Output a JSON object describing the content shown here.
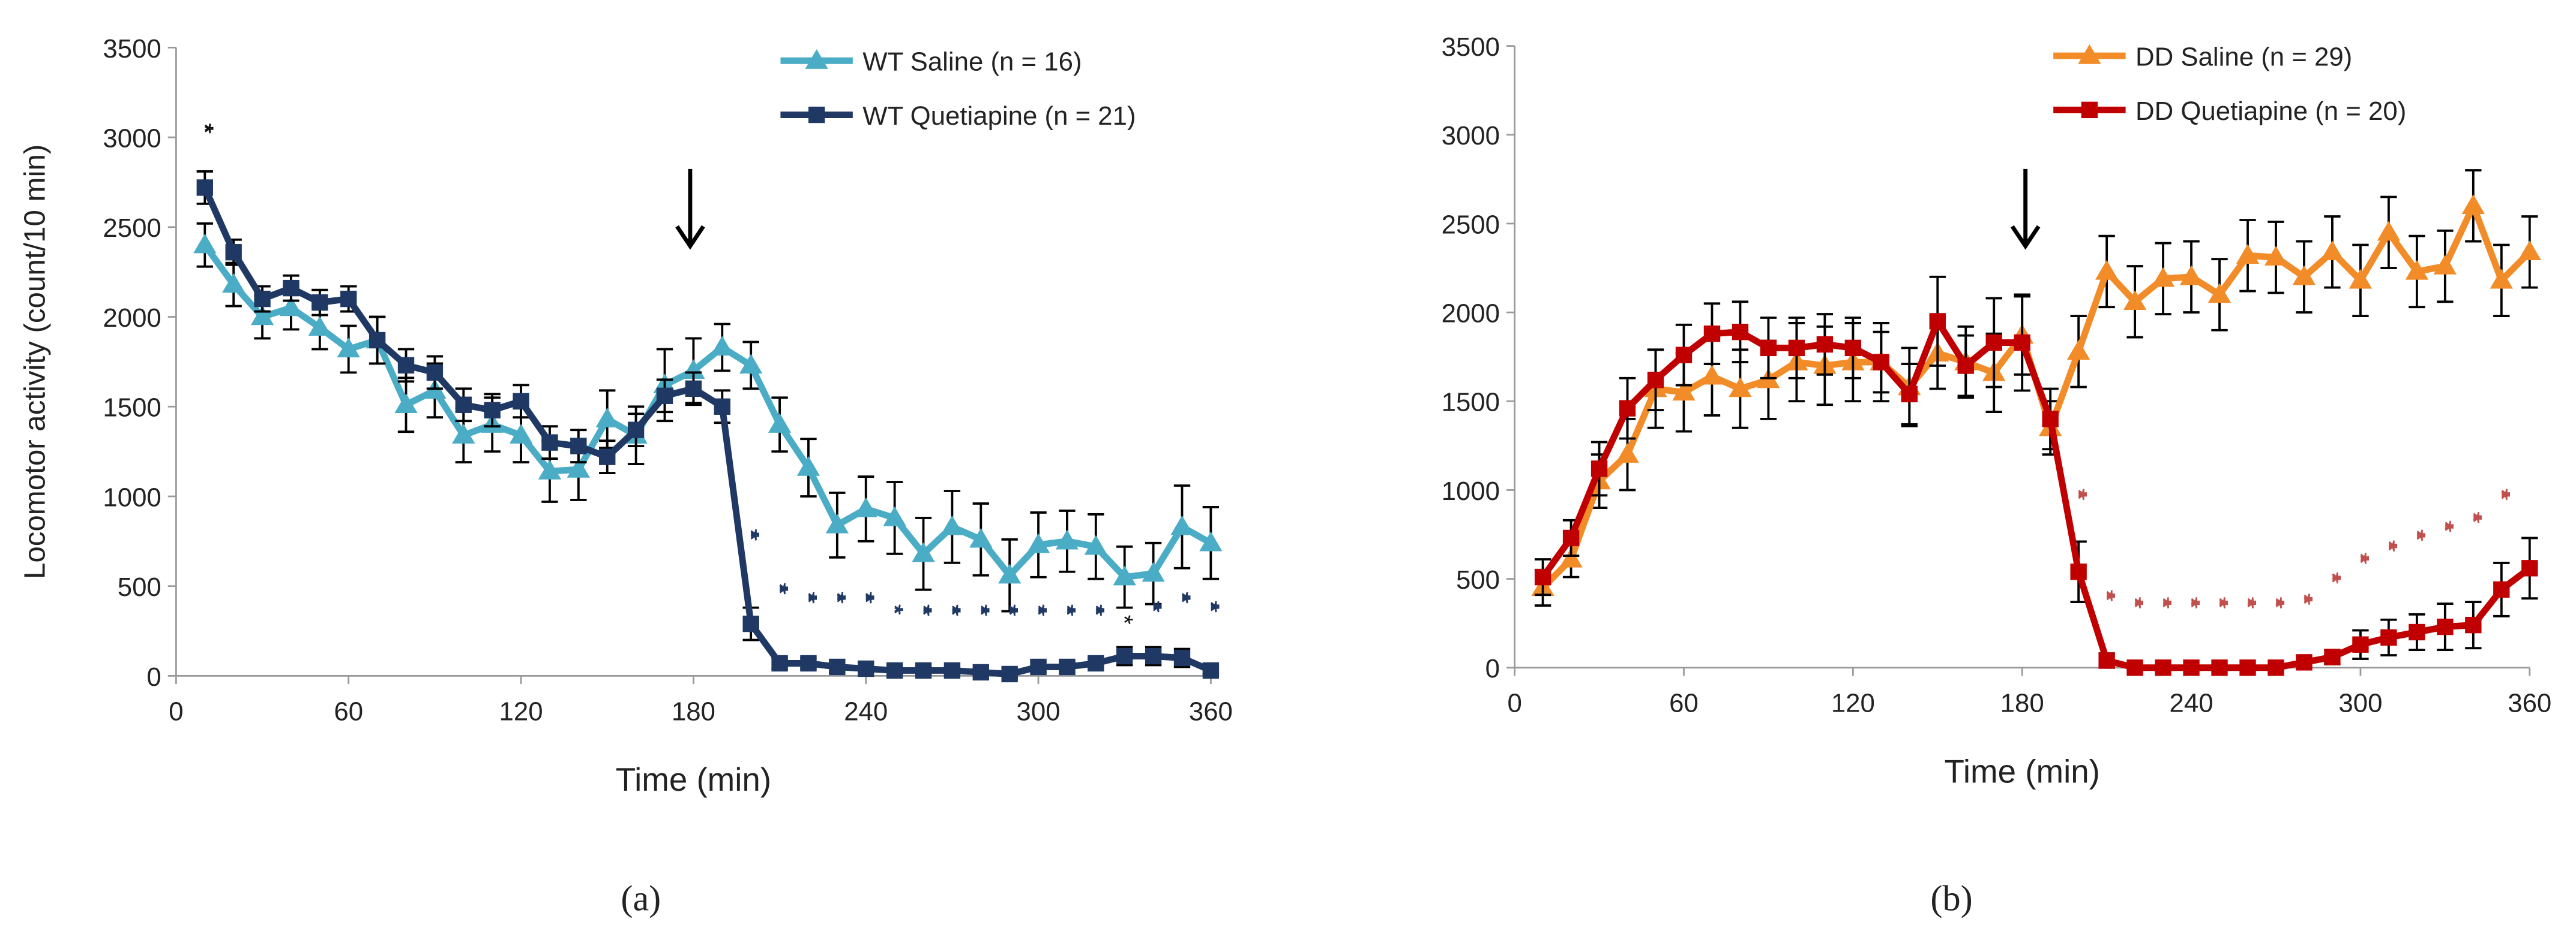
{
  "chart_data": [
    {
      "type": "line",
      "caption": "(a)",
      "xlabel": "Time (min)",
      "ylabel": "Locomotor activity (count/10 min)",
      "x": [
        10,
        20,
        30,
        40,
        50,
        60,
        70,
        80,
        90,
        100,
        110,
        120,
        130,
        140,
        150,
        160,
        170,
        180,
        190,
        200,
        210,
        220,
        230,
        240,
        250,
        260,
        270,
        280,
        290,
        300,
        310,
        320,
        330,
        340,
        350,
        360
      ],
      "xlim": [
        0,
        360
      ],
      "xticks": [
        0,
        60,
        120,
        180,
        240,
        300,
        360
      ],
      "ylim": [
        0,
        3500
      ],
      "yticks": [
        0,
        500,
        1000,
        1500,
        2000,
        2500,
        3000,
        3500
      ],
      "series": [
        {
          "name": "WT Saline (n = 16)",
          "color": "#4bacc6",
          "marker": "triangle",
          "values": [
            2400,
            2180,
            2000,
            2050,
            1940,
            1820,
            1870,
            1510,
            1590,
            1340,
            1400,
            1340,
            1140,
            1150,
            1430,
            1340,
            1620,
            1700,
            1830,
            1730,
            1400,
            1160,
            840,
            930,
            880,
            680,
            830,
            760,
            560,
            730,
            750,
            720,
            550,
            570,
            830,
            740
          ],
          "errors": [
            120,
            120,
            120,
            120,
            120,
            130,
            130,
            150,
            150,
            150,
            150,
            150,
            170,
            170,
            160,
            160,
            200,
            180,
            130,
            130,
            150,
            160,
            180,
            180,
            200,
            200,
            200,
            200,
            200,
            180,
            170,
            180,
            170,
            170,
            230,
            200
          ]
        },
        {
          "name": "WT Quetiapine (n = 21)",
          "color": "#1f3864",
          "marker": "square",
          "values": [
            2720,
            2360,
            2100,
            2160,
            2080,
            2100,
            1870,
            1730,
            1690,
            1510,
            1480,
            1530,
            1300,
            1280,
            1220,
            1370,
            1560,
            1600,
            1500,
            290,
            70,
            70,
            50,
            40,
            30,
            30,
            30,
            20,
            10,
            50,
            50,
            70,
            110,
            110,
            100,
            30
          ],
          "errors": [
            90,
            70,
            70,
            70,
            70,
            70,
            130,
            90,
            90,
            90,
            90,
            90,
            90,
            90,
            90,
            90,
            90,
            90,
            90,
            90,
            30,
            30,
            30,
            30,
            20,
            20,
            20,
            20,
            20,
            30,
            30,
            30,
            50,
            50,
            50,
            20
          ]
        }
      ],
      "annotations": [
        {
          "x": 10,
          "y": 3080,
          "text": "**",
          "color": "#111111"
        },
        {
          "x": 200,
          "y": 820,
          "text": "***",
          "color": "#1f3864"
        },
        {
          "x": 210,
          "y": 520,
          "text": "***",
          "color": "#1f3864"
        },
        {
          "x": 220,
          "y": 470,
          "text": "***",
          "color": "#1f3864"
        },
        {
          "x": 230,
          "y": 470,
          "text": "***",
          "color": "#1f3864"
        },
        {
          "x": 240,
          "y": 470,
          "text": "***",
          "color": "#1f3864"
        },
        {
          "x": 250,
          "y": 400,
          "text": "**",
          "color": "#1f3864"
        },
        {
          "x": 260,
          "y": 400,
          "text": "***",
          "color": "#1f3864"
        },
        {
          "x": 270,
          "y": 400,
          "text": "***",
          "color": "#1f3864"
        },
        {
          "x": 280,
          "y": 400,
          "text": "***",
          "color": "#1f3864"
        },
        {
          "x": 290,
          "y": 400,
          "text": "***",
          "color": "#1f3864"
        },
        {
          "x": 300,
          "y": 400,
          "text": "***",
          "color": "#1f3864"
        },
        {
          "x": 310,
          "y": 400,
          "text": "***",
          "color": "#1f3864"
        },
        {
          "x": 320,
          "y": 400,
          "text": "***",
          "color": "#1f3864"
        },
        {
          "x": 330,
          "y": 340,
          "text": "*",
          "color": "#111111"
        },
        {
          "x": 340,
          "y": 420,
          "text": "***",
          "color": "#1f3864"
        },
        {
          "x": 350,
          "y": 470,
          "text": "***",
          "color": "#1f3864"
        },
        {
          "x": 360,
          "y": 420,
          "text": "***",
          "color": "#1f3864"
        }
      ]
    },
    {
      "type": "line",
      "caption": "(b)",
      "xlabel": "Time (min)",
      "x": [
        10,
        20,
        30,
        40,
        50,
        60,
        70,
        80,
        90,
        100,
        110,
        120,
        130,
        140,
        150,
        160,
        170,
        180,
        190,
        200,
        210,
        220,
        230,
        240,
        250,
        260,
        270,
        280,
        290,
        300,
        310,
        320,
        330,
        340,
        350,
        360
      ],
      "xlim": [
        0,
        360
      ],
      "xticks": [
        0,
        60,
        120,
        180,
        240,
        300,
        360
      ],
      "ylim": [
        0,
        3500
      ],
      "yticks": [
        0,
        500,
        1000,
        1500,
        2000,
        2500,
        3000,
        3500
      ],
      "series": [
        {
          "name": "DD Saline (n = 29)",
          "color": "#f28c28",
          "marker": "triangle",
          "values": [
            450,
            610,
            1050,
            1200,
            1570,
            1550,
            1640,
            1570,
            1620,
            1720,
            1700,
            1720,
            1720,
            1580,
            1770,
            1720,
            1660,
            1870,
            1350,
            1780,
            2230,
            2060,
            2190,
            2200,
            2100,
            2320,
            2310,
            2200,
            2340,
            2180,
            2450,
            2230,
            2260,
            2600,
            2180,
            2340
          ],
          "errors": [
            100,
            100,
            150,
            200,
            220,
            220,
            220,
            220,
            220,
            220,
            220,
            220,
            220,
            220,
            200,
            200,
            220,
            220,
            150,
            200,
            200,
            200,
            200,
            200,
            200,
            200,
            200,
            200,
            200,
            200,
            200,
            200,
            200,
            200,
            200,
            200
          ]
        },
        {
          "name": "DD Quetiapine (n = 20)",
          "color": "#c00000",
          "marker": "square",
          "values": [
            510,
            730,
            1120,
            1460,
            1620,
            1760,
            1880,
            1890,
            1800,
            1800,
            1820,
            1800,
            1720,
            1540,
            1950,
            1700,
            1830,
            1830,
            1400,
            540,
            40,
            0,
            0,
            0,
            0,
            0,
            0,
            30,
            60,
            130,
            170,
            200,
            230,
            240,
            440,
            560
          ],
          "errors": [
            100,
            100,
            150,
            170,
            170,
            170,
            170,
            170,
            170,
            170,
            170,
            170,
            170,
            170,
            250,
            170,
            250,
            270,
            170,
            170,
            40,
            10,
            10,
            10,
            10,
            10,
            10,
            30,
            40,
            80,
            100,
            100,
            130,
            130,
            150,
            170
          ]
        }
      ],
      "annotations": [
        {
          "x": 200,
          "y": 1010,
          "text": "***",
          "color": "#c0504d"
        },
        {
          "x": 210,
          "y": 440,
          "text": "***",
          "color": "#c0504d"
        },
        {
          "x": 220,
          "y": 400,
          "text": "***",
          "color": "#c0504d"
        },
        {
          "x": 230,
          "y": 400,
          "text": "***",
          "color": "#c0504d"
        },
        {
          "x": 240,
          "y": 400,
          "text": "***",
          "color": "#c0504d"
        },
        {
          "x": 250,
          "y": 400,
          "text": "***",
          "color": "#c0504d"
        },
        {
          "x": 260,
          "y": 400,
          "text": "***",
          "color": "#c0504d"
        },
        {
          "x": 270,
          "y": 400,
          "text": "***",
          "color": "#c0504d"
        },
        {
          "x": 280,
          "y": 420,
          "text": "***",
          "color": "#c0504d"
        },
        {
          "x": 290,
          "y": 540,
          "text": "***",
          "color": "#c0504d"
        },
        {
          "x": 300,
          "y": 650,
          "text": "***",
          "color": "#c0504d"
        },
        {
          "x": 310,
          "y": 720,
          "text": "***",
          "color": "#c0504d"
        },
        {
          "x": 320,
          "y": 780,
          "text": "***",
          "color": "#c0504d"
        },
        {
          "x": 330,
          "y": 830,
          "text": "***",
          "color": "#c0504d"
        },
        {
          "x": 340,
          "y": 880,
          "text": "***",
          "color": "#c0504d"
        },
        {
          "x": 350,
          "y": 1010,
          "text": "***",
          "color": "#c0504d"
        }
      ]
    }
  ]
}
